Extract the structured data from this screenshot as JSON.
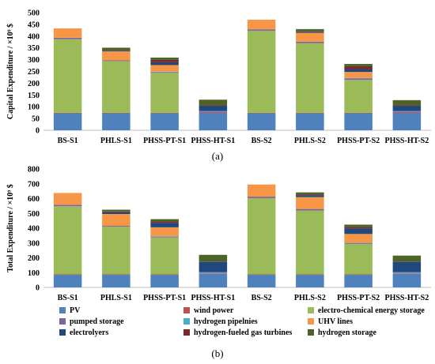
{
  "chart_data": [
    {
      "type": "bar",
      "stacked": true,
      "caption": "(a)",
      "ylabel": "Capital Expenditure / ×10⁹ $",
      "ylim": [
        0,
        500
      ],
      "yticks": [
        0,
        50,
        100,
        150,
        200,
        250,
        300,
        350,
        400,
        450,
        500
      ],
      "grid": false,
      "categories": [
        "BS-S1",
        "PHLS-S1",
        "PHSS-PT-S1",
        "PHSS-HT-S1",
        "BS-S2",
        "PHLS-S2",
        "PHSS-PT-S2",
        "PHSS-HT-S2"
      ],
      "series": [
        {
          "name": "PV",
          "color": "#4f81bd",
          "values": [
            72,
            72,
            72,
            72,
            72,
            72,
            72,
            72
          ]
        },
        {
          "name": "wind power",
          "color": "#c0504d",
          "values": [
            2,
            2,
            2,
            2,
            2,
            2,
            2,
            2
          ]
        },
        {
          "name": "electro-chemical energy storage",
          "color": "#9bbb59",
          "values": [
            313,
            220,
            170,
            0,
            349,
            296,
            140,
            0
          ]
        },
        {
          "name": "pumped storage",
          "color": "#8064a2",
          "values": [
            6,
            3,
            3,
            6,
            6,
            6,
            6,
            6
          ]
        },
        {
          "name": "hydrogen pipelnies",
          "color": "#4bacc6",
          "values": [
            0,
            0,
            2,
            2,
            0,
            0,
            2,
            2
          ]
        },
        {
          "name": "UHV lines",
          "color": "#f79646",
          "values": [
            40,
            38,
            28,
            0,
            41,
            38,
            26,
            0
          ]
        },
        {
          "name": "electrolyers",
          "color": "#1f497d",
          "values": [
            0,
            3,
            12,
            22,
            0,
            3,
            12,
            22
          ]
        },
        {
          "name": "hydrogen-fueled gas turbines",
          "color": "#7b2a2a",
          "values": [
            0,
            3,
            10,
            2,
            0,
            3,
            12,
            2
          ]
        },
        {
          "name": "hydrogen storage",
          "color": "#4f6228",
          "values": [
            0,
            10,
            10,
            24,
            0,
            10,
            10,
            22
          ]
        }
      ]
    },
    {
      "type": "bar",
      "stacked": true,
      "caption": "(b)",
      "ylabel": "Total Expenditure / ×10⁹ $",
      "ylim": [
        0,
        800
      ],
      "yticks": [
        0,
        100,
        200,
        300,
        400,
        500,
        600,
        700,
        800
      ],
      "grid": false,
      "categories": [
        "BS-S1",
        "PHLS-S1",
        "PHSS-PT-S1",
        "PHSS-HT-S1",
        "BS-S2",
        "PHLS-S2",
        "PHSS-PT-S2",
        "PHSS-HT-S2"
      ],
      "series": [
        {
          "name": "PV",
          "color": "#4f81bd",
          "values": [
            85,
            85,
            85,
            92,
            85,
            85,
            85,
            92
          ]
        },
        {
          "name": "wind power",
          "color": "#c0504d",
          "values": [
            3,
            3,
            3,
            3,
            3,
            3,
            3,
            3
          ]
        },
        {
          "name": "electro-chemical energy storage",
          "color": "#9bbb59",
          "values": [
            460,
            323,
            250,
            0,
            515,
            432,
            205,
            0
          ]
        },
        {
          "name": "pumped storage",
          "color": "#8064a2",
          "values": [
            10,
            5,
            5,
            5,
            10,
            10,
            5,
            5
          ]
        },
        {
          "name": "hydrogen pipelnies",
          "color": "#4bacc6",
          "values": [
            0,
            0,
            3,
            3,
            0,
            0,
            3,
            3
          ]
        },
        {
          "name": "UHV lines",
          "color": "#f79646",
          "values": [
            80,
            80,
            60,
            0,
            82,
            80,
            60,
            0
          ]
        },
        {
          "name": "electrolyers",
          "color": "#1f497d",
          "values": [
            0,
            12,
            30,
            70,
            0,
            12,
            38,
            70
          ]
        },
        {
          "name": "hydrogen-fueled gas turbines",
          "color": "#7b2a2a",
          "values": [
            0,
            5,
            10,
            2,
            0,
            5,
            10,
            2
          ]
        },
        {
          "name": "hydrogen storage",
          "color": "#4f6228",
          "values": [
            0,
            12,
            15,
            45,
            0,
            15,
            15,
            40
          ]
        }
      ]
    }
  ],
  "legend": {
    "placement": "bottom",
    "items": [
      {
        "label": "PV",
        "color": "#4f81bd"
      },
      {
        "label": "wind power",
        "color": "#c0504d"
      },
      {
        "label": "electro-chemical energy storage",
        "color": "#9bbb59"
      },
      {
        "label": "pumped storage",
        "color": "#8064a2"
      },
      {
        "label": "hydrogen pipelnies",
        "color": "#4bacc6"
      },
      {
        "label": "UHV lines",
        "color": "#f79646"
      },
      {
        "label": "electrolyers",
        "color": "#1f497d"
      },
      {
        "label": "hydrogen-fueled gas turbines",
        "color": "#7b2a2a"
      },
      {
        "label": "hydrogen storage",
        "color": "#4f6228"
      }
    ]
  }
}
